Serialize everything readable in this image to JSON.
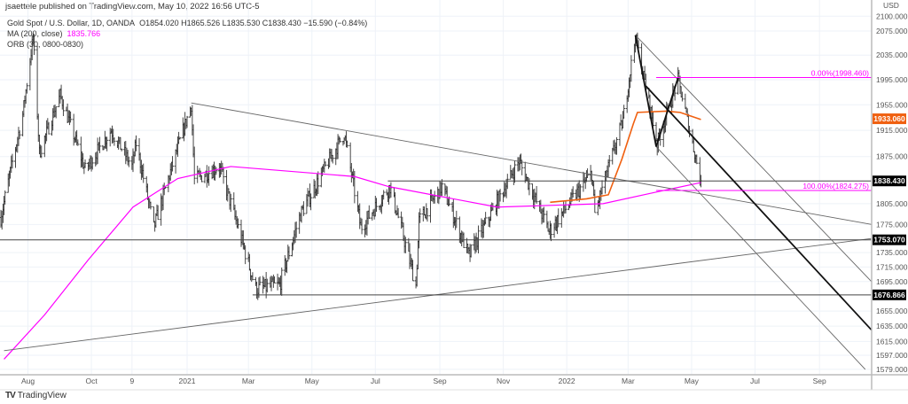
{
  "publisher_line": "jsaettele published on TradingView.com, May 10, 2022 16:56 UTC-5",
  "legend": {
    "symbol": "Gold Spot / U.S. Dollar, 1D, OANDA",
    "ohlc": "O1854.020 H1865.526 L1835.530 C1838.430 −15.590 (−0.84%)",
    "ma_label": "MA (200, close)",
    "ma_value": "1835.766",
    "orb_label": "ORB (30, 0800-0830)"
  },
  "branding": "TradingView",
  "colors": {
    "ma200": "#ff00ff",
    "orange_line": "#f06010",
    "bars": "#333333",
    "drawings": "#555555",
    "fib": "#ff00ff"
  },
  "chart_data": {
    "type": "ohlc-bar",
    "scale": "log",
    "currency_label": "USD",
    "ylim": [
      1570,
      2110
    ],
    "xlim": [
      "2020-07-05",
      "2022-10-21"
    ],
    "y_ticks": [
      "2100.000",
      "2075.000",
      "2035.000",
      "1995.000",
      "1955.000",
      "1915.000",
      "1875.000",
      "1805.000",
      "1775.000",
      "1735.000",
      "1715.000",
      "1695.000",
      "1655.000",
      "1635.000",
      "1615.000",
      "1597.000",
      "1579.000"
    ],
    "x_ticks": [
      {
        "label": "Aug",
        "date": "2020-08-01"
      },
      {
        "label": "Oct",
        "date": "2020-10-01"
      },
      {
        "label": "9",
        "date": "2020-11-09"
      },
      {
        "label": "2021",
        "date": "2021-01-01"
      },
      {
        "label": "Mar",
        "date": "2021-03-01"
      },
      {
        "label": "May",
        "date": "2021-05-01"
      },
      {
        "label": "Jul",
        "date": "2021-07-01"
      },
      {
        "label": "Sep",
        "date": "2021-09-01"
      },
      {
        "label": "Nov",
        "date": "2021-11-01"
      },
      {
        "label": "2022",
        "date": "2022-01-01"
      },
      {
        "label": "Mar",
        "date": "2022-03-01"
      },
      {
        "label": "May",
        "date": "2022-05-01"
      },
      {
        "label": "Jul",
        "date": "2022-07-01"
      },
      {
        "label": "Sep",
        "date": "2022-09-01"
      }
    ],
    "price_path": [
      [
        "2020-07-06",
        1785
      ],
      [
        "2020-07-27",
        1940
      ],
      [
        "2020-08-06",
        2065
      ],
      [
        "2020-08-12",
        1880
      ],
      [
        "2020-09-01",
        1970
      ],
      [
        "2020-09-25",
        1855
      ],
      [
        "2020-10-20",
        1915
      ],
      [
        "2020-11-09",
        1860
      ],
      [
        "2020-11-13",
        1895
      ],
      [
        "2020-11-30",
        1770
      ],
      [
        "2021-01-05",
        1955
      ],
      [
        "2021-01-08",
        1840
      ],
      [
        "2021-02-01",
        1860
      ],
      [
        "2021-03-08",
        1685
      ],
      [
        "2021-03-31",
        1690
      ],
      [
        "2021-04-20",
        1790
      ],
      [
        "2021-06-01",
        1910
      ],
      [
        "2021-06-17",
        1770
      ],
      [
        "2021-07-15",
        1830
      ],
      [
        "2021-08-09",
        1690
      ],
      [
        "2021-08-12",
        1780
      ],
      [
        "2021-09-03",
        1830
      ],
      [
        "2021-09-29",
        1730
      ],
      [
        "2021-11-16",
        1868
      ],
      [
        "2021-12-15",
        1765
      ],
      [
        "2022-01-25",
        1850
      ],
      [
        "2022-01-28",
        1790
      ],
      [
        "2022-02-24",
        1930
      ],
      [
        "2022-03-08",
        2065
      ],
      [
        "2022-03-29",
        1895
      ],
      [
        "2022-04-18",
        1995
      ],
      [
        "2022-05-10",
        1838
      ]
    ],
    "series": [
      {
        "name": "MA (200, close)",
        "color": "#ff00ff",
        "points": [
          [
            "2020-07-09",
            1592
          ],
          [
            "2020-08-17",
            1650
          ],
          [
            "2020-09-28",
            1725
          ],
          [
            "2020-11-10",
            1800
          ],
          [
            "2020-12-23",
            1842
          ],
          [
            "2021-02-12",
            1860
          ],
          [
            "2021-06-11",
            1845
          ],
          [
            "2021-07-14",
            1830
          ],
          [
            "2021-10-26",
            1800
          ],
          [
            "2022-02-05",
            1805
          ],
          [
            "2022-03-28",
            1822
          ],
          [
            "2022-05-10",
            1836
          ]
        ]
      },
      {
        "color": "#f06010",
        "points": [
          [
            "2021-12-16",
            1807
          ],
          [
            "2022-01-20",
            1812
          ],
          [
            "2022-02-10",
            1818
          ],
          [
            "2022-02-23",
            1871
          ],
          [
            "2022-03-06",
            1925
          ],
          [
            "2022-03-10",
            1943
          ],
          [
            "2022-04-07",
            1945
          ],
          [
            "2022-04-20",
            1943
          ],
          [
            "2022-05-10",
            1932
          ]
        ]
      }
    ],
    "price_labels": [
      {
        "value": "1933.060",
        "price": 1933.06,
        "color": "#f06010"
      },
      {
        "value": "1838.430",
        "price": 1838.43,
        "color": "#000000"
      },
      {
        "value": "1753.070",
        "price": 1753.07,
        "color": "#000000"
      },
      {
        "value": "1676.866",
        "price": 1676.866,
        "color": "#000000"
      }
    ],
    "drawings": [
      {
        "kind": "line",
        "from": [
          "2021-01-05",
          1958
        ],
        "to": [
          "2022-10-21",
          1775
        ],
        "weight": "thin"
      },
      {
        "kind": "line",
        "from": [
          "2020-07-09",
          1603
        ],
        "to": [
          "2022-10-21",
          1755
        ],
        "weight": "thin"
      },
      {
        "kind": "hline",
        "price": 1753.07,
        "from": "2020-07-05"
      },
      {
        "kind": "hline",
        "price": 1676.866,
        "from": "2021-03-05"
      },
      {
        "kind": "hline",
        "price": 1838.43,
        "from": "2021-07-13"
      },
      {
        "kind": "line",
        "from": [
          "2022-03-08",
          2068
        ],
        "to": [
          "2022-10-21",
          1695
        ],
        "weight": "thin"
      },
      {
        "kind": "line",
        "from": [
          "2022-03-28",
          1890
        ],
        "to": [
          "2022-10-15",
          1579
        ],
        "weight": "thin"
      },
      {
        "kind": "line",
        "from": [
          "2022-03-18",
          1985
        ],
        "to": [
          "2022-10-21",
          1630
        ],
        "weight": "thick"
      },
      {
        "kind": "line",
        "from": [
          "2022-03-08",
          2068
        ],
        "to": [
          "2022-03-28",
          1890
        ],
        "weight": "thick"
      },
      {
        "kind": "line",
        "from": [
          "2022-03-28",
          1890
        ],
        "to": [
          "2022-04-18",
          1998
        ],
        "weight": "thick"
      }
    ],
    "fib_levels": [
      {
        "label": "0.00%(1998.460)",
        "price": 1998.46,
        "from": "2022-03-28"
      },
      {
        "label": "100.00%(1824.275)",
        "price": 1824.275,
        "from": "2022-03-28"
      }
    ]
  }
}
